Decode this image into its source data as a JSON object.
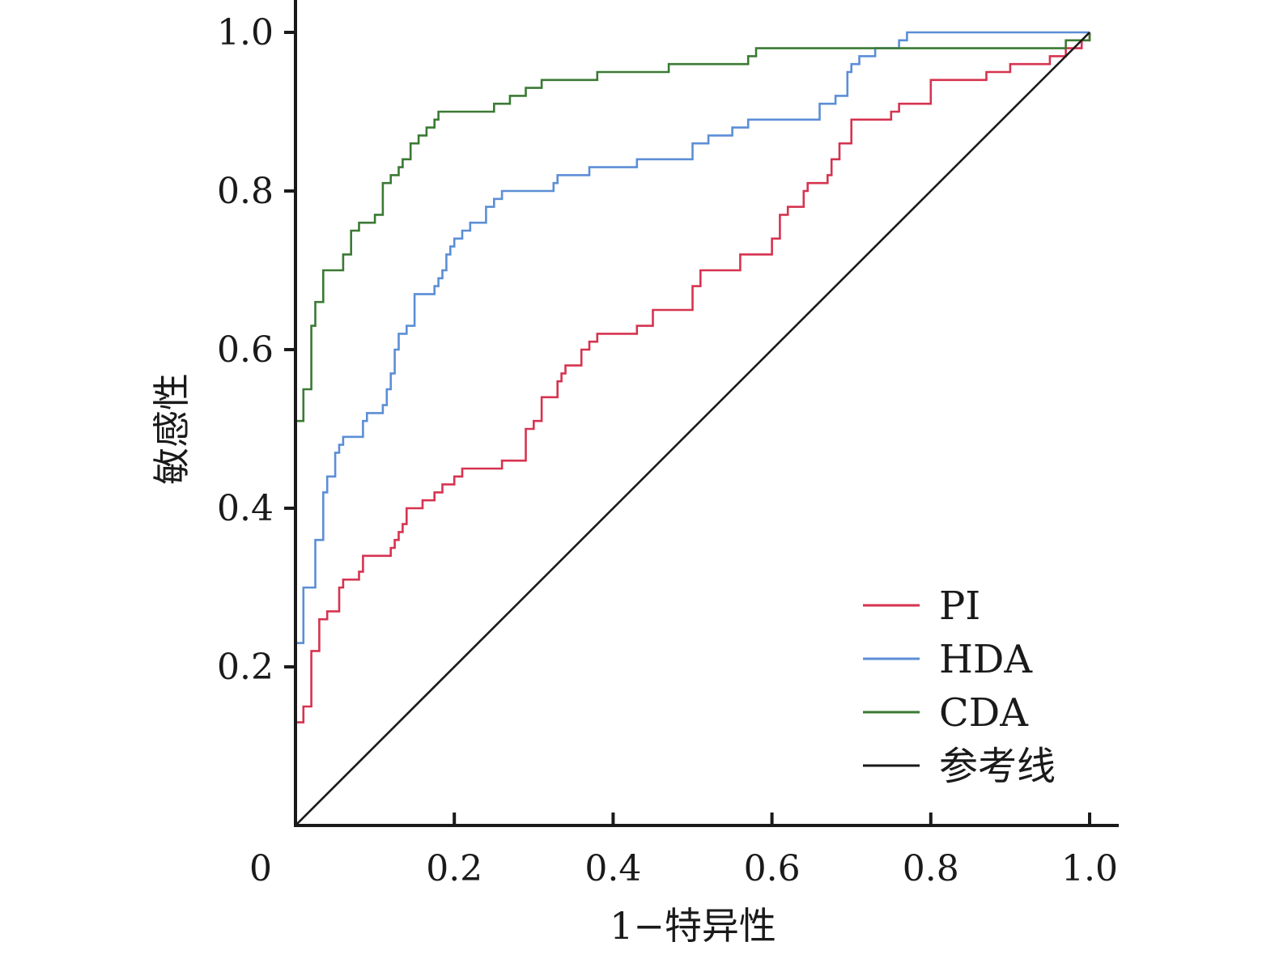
{
  "chart_data": {
    "type": "line",
    "title": "",
    "xlabel": "1−特异性",
    "ylabel": "敏感性",
    "xlim": [
      0,
      1
    ],
    "ylim": [
      0,
      1
    ],
    "x_ticks": [
      0,
      0.2,
      0.4,
      0.6,
      0.8,
      1.0
    ],
    "x_tick_labels": [
      "0",
      "0.2",
      "0.4",
      "0.6",
      "0.8",
      "1.0"
    ],
    "y_ticks": [
      0.2,
      0.4,
      0.6,
      0.8,
      1.0
    ],
    "y_tick_labels": [
      "0.2",
      "0.4",
      "0.6",
      "0.8",
      "1.0"
    ],
    "grid": false,
    "legend_position": "bottom-right",
    "series": [
      {
        "name": "PI",
        "color": "#d6334f",
        "step": true,
        "x": [
          0,
          0.005,
          0.01,
          0.015,
          0.02,
          0.025,
          0.03,
          0.035,
          0.04,
          0.05,
          0.055,
          0.06,
          0.08,
          0.085,
          0.09,
          0.095,
          0.1,
          0.11,
          0.12,
          0.125,
          0.13,
          0.135,
          0.14,
          0.15,
          0.16,
          0.175,
          0.185,
          0.195,
          0.2,
          0.21,
          0.22,
          0.26,
          0.27,
          0.29,
          0.3,
          0.31,
          0.33,
          0.335,
          0.34,
          0.36,
          0.37,
          0.38,
          0.39,
          0.43,
          0.45,
          0.46,
          0.5,
          0.51,
          0.525,
          0.56,
          0.6,
          0.61,
          0.615,
          0.62,
          0.64,
          0.645,
          0.66,
          0.67,
          0.675,
          0.685,
          0.7,
          0.705,
          0.75,
          0.76,
          0.78,
          0.8,
          0.85,
          0.87,
          0.88,
          0.9,
          0.95,
          0.96,
          0.97,
          0.99,
          1.0
        ],
        "y": [
          0.13,
          0.13,
          0.15,
          0.15,
          0.22,
          0.22,
          0.26,
          0.26,
          0.27,
          0.27,
          0.3,
          0.31,
          0.32,
          0.34,
          0.34,
          0.34,
          0.34,
          0.34,
          0.35,
          0.36,
          0.37,
          0.38,
          0.4,
          0.4,
          0.41,
          0.42,
          0.43,
          0.43,
          0.44,
          0.45,
          0.45,
          0.46,
          0.46,
          0.5,
          0.51,
          0.54,
          0.56,
          0.57,
          0.58,
          0.6,
          0.61,
          0.62,
          0.62,
          0.63,
          0.65,
          0.65,
          0.68,
          0.7,
          0.7,
          0.72,
          0.74,
          0.77,
          0.77,
          0.78,
          0.8,
          0.81,
          0.81,
          0.82,
          0.84,
          0.86,
          0.89,
          0.89,
          0.9,
          0.91,
          0.91,
          0.94,
          0.94,
          0.95,
          0.95,
          0.96,
          0.97,
          0.97,
          0.98,
          0.99,
          1.0
        ]
      },
      {
        "name": "HDA",
        "color": "#5b8ed6",
        "step": true,
        "x": [
          0,
          0.005,
          0.01,
          0.02,
          0.025,
          0.03,
          0.035,
          0.04,
          0.045,
          0.05,
          0.055,
          0.06,
          0.08,
          0.085,
          0.09,
          0.1,
          0.11,
          0.115,
          0.12,
          0.125,
          0.13,
          0.135,
          0.14,
          0.15,
          0.16,
          0.175,
          0.18,
          0.185,
          0.19,
          0.195,
          0.2,
          0.21,
          0.22,
          0.24,
          0.25,
          0.26,
          0.29,
          0.32,
          0.325,
          0.33,
          0.36,
          0.37,
          0.4,
          0.43,
          0.5,
          0.52,
          0.55,
          0.57,
          0.61,
          0.66,
          0.68,
          0.695,
          0.7,
          0.71,
          0.73,
          0.76,
          0.77,
          0.78,
          0.96,
          0.965,
          1.0
        ],
        "y": [
          0.23,
          0.23,
          0.3,
          0.3,
          0.36,
          0.36,
          0.42,
          0.44,
          0.44,
          0.47,
          0.48,
          0.49,
          0.49,
          0.51,
          0.52,
          0.52,
          0.53,
          0.55,
          0.57,
          0.6,
          0.62,
          0.62,
          0.63,
          0.67,
          0.67,
          0.68,
          0.69,
          0.7,
          0.72,
          0.73,
          0.74,
          0.75,
          0.76,
          0.78,
          0.79,
          0.8,
          0.8,
          0.8,
          0.81,
          0.82,
          0.82,
          0.83,
          0.83,
          0.84,
          0.86,
          0.87,
          0.88,
          0.89,
          0.89,
          0.91,
          0.92,
          0.95,
          0.96,
          0.97,
          0.98,
          0.99,
          1.0,
          1.0,
          1.0,
          1.0,
          1.0
        ]
      },
      {
        "name": "CDA",
        "color": "#3a7a33",
        "step": true,
        "x": [
          0,
          0.005,
          0.01,
          0.02,
          0.025,
          0.035,
          0.05,
          0.06,
          0.07,
          0.075,
          0.08,
          0.1,
          0.11,
          0.12,
          0.13,
          0.135,
          0.14,
          0.145,
          0.15,
          0.155,
          0.16,
          0.165,
          0.17,
          0.175,
          0.18,
          0.19,
          0.25,
          0.27,
          0.29,
          0.31,
          0.36,
          0.38,
          0.47,
          0.48,
          0.57,
          0.58,
          0.97,
          1.0
        ],
        "y": [
          0.51,
          0.51,
          0.55,
          0.63,
          0.66,
          0.7,
          0.7,
          0.72,
          0.75,
          0.75,
          0.76,
          0.77,
          0.81,
          0.82,
          0.83,
          0.84,
          0.84,
          0.86,
          0.86,
          0.87,
          0.87,
          0.88,
          0.88,
          0.89,
          0.9,
          0.9,
          0.91,
          0.92,
          0.93,
          0.94,
          0.94,
          0.95,
          0.96,
          0.96,
          0.97,
          0.98,
          0.99,
          1.0
        ]
      },
      {
        "name": "参考线",
        "color": "#1a1a1a",
        "step": false,
        "x": [
          0,
          1
        ],
        "y": [
          0,
          1
        ]
      }
    ]
  }
}
